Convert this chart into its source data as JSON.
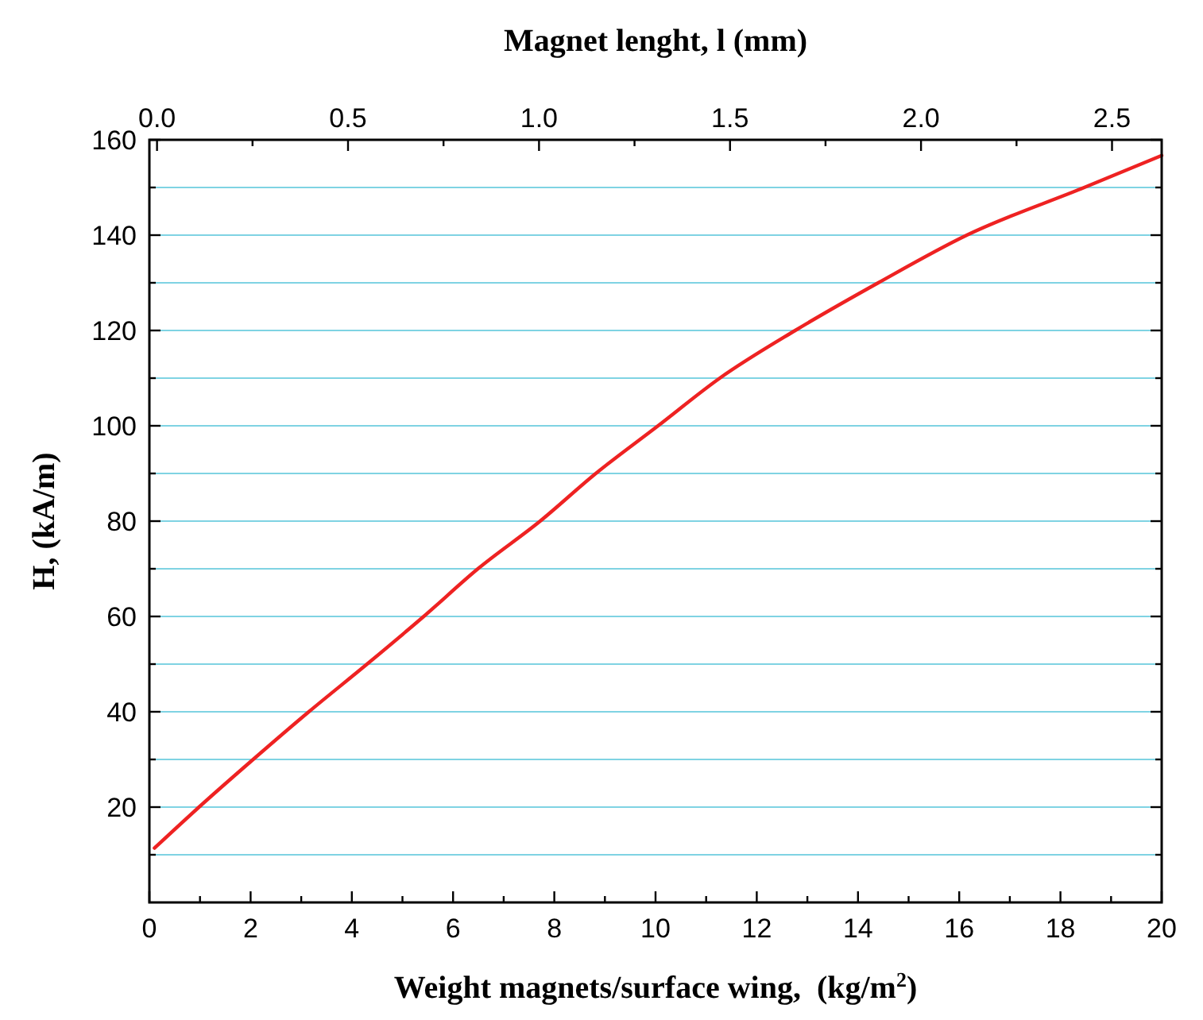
{
  "chart_data": {
    "type": "line",
    "xlabel": "Weight magnets/surface wing,  (kg/m$^{2}$)",
    "ylabel": "H, (kA/m)",
    "x2label": "Magnet lenght, l (mm)",
    "xlim": [
      0,
      20
    ],
    "ylim": [
      0,
      160
    ],
    "x2lim": [
      -0.02,
      2.63
    ],
    "xticks": [
      0,
      {
        "value": 1,
        "label": null
      },
      2,
      {
        "value": 3,
        "label": null
      },
      4,
      {
        "value": 5,
        "label": null
      },
      6,
      {
        "value": 7,
        "label": null
      },
      8,
      {
        "value": 9,
        "label": null
      },
      10,
      {
        "value": 11,
        "label": null
      },
      12,
      {
        "value": 13,
        "label": null
      },
      14,
      {
        "value": 15,
        "label": null
      },
      16,
      {
        "value": 17,
        "label": null
      },
      18,
      {
        "value": 19,
        "label": null
      },
      20
    ],
    "yticks": [
      {
        "value": 10,
        "label": null
      },
      20,
      {
        "value": 30,
        "label": null
      },
      40,
      {
        "value": 50,
        "label": null
      },
      60,
      {
        "value": 70,
        "label": null
      },
      80,
      {
        "value": 90,
        "label": null
      },
      100,
      {
        "value": 110,
        "label": null
      },
      120,
      {
        "value": 130,
        "label": null
      },
      140,
      {
        "value": 150,
        "label": null
      },
      160
    ],
    "x2ticks": [
      {
        "value": 0,
        "label": "0.0"
      },
      {
        "value": 0.25,
        "label": null
      },
      {
        "value": 0.5,
        "label": "0.5"
      },
      {
        "value": 0.75,
        "label": null
      },
      {
        "value": 1,
        "label": "1.0"
      },
      {
        "value": 1.25,
        "label": null
      },
      {
        "value": 1.5,
        "label": "1.5"
      },
      {
        "value": 1.75,
        "label": null
      },
      {
        "value": 2,
        "label": "2.0"
      },
      {
        "value": 2.25,
        "label": null
      },
      {
        "value": 2.5,
        "label": "2.5"
      }
    ],
    "grid": "y",
    "marker": "none",
    "line_style": "solid",
    "series": [
      {
        "color": "#ee2222",
        "x": [
          0.1,
          0.98,
          2.05,
          3.15,
          4.3,
          5.42,
          6.49,
          7.72,
          8.82,
          10.05,
          11.27,
          12.76,
          14.4,
          16.15,
          18.47,
          20
        ],
        "values": [
          11.4,
          20,
          30,
          40,
          50,
          60,
          70,
          80,
          90,
          100,
          110,
          120,
          130,
          140,
          150,
          156.7
        ]
      }
    ]
  }
}
